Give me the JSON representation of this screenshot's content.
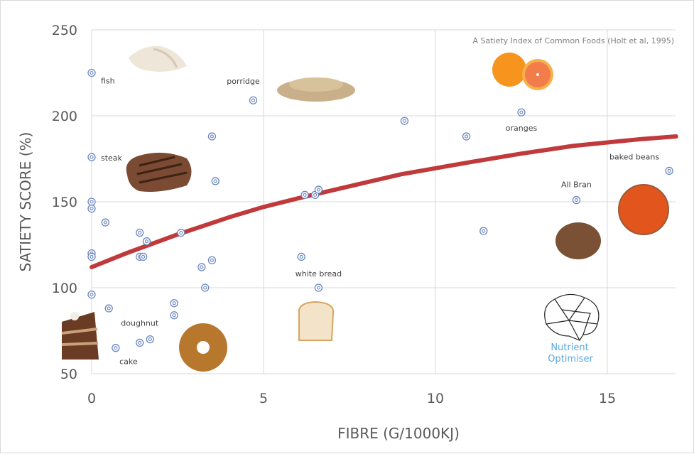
{
  "chart_data": {
    "type": "scatter",
    "title": "A Satiety Index of Common Foods (Holt et al, 1995)",
    "xlabel": "FIBRE (G/1000KJ)",
    "ylabel": "SATIETY SCORE (%)",
    "xlim": [
      0,
      17
    ],
    "ylim": [
      50,
      250
    ],
    "xticks": [
      "0",
      "5",
      "10",
      "15"
    ],
    "yticks": [
      "50",
      "100",
      "150",
      "200",
      "250"
    ],
    "grid": true,
    "marker_color": "#4a6bb5",
    "trend_color": "#c0393b",
    "points": [
      {
        "x": 0,
        "y": 225,
        "label": "fish"
      },
      {
        "x": 4.7,
        "y": 209,
        "label": "porridge"
      },
      {
        "x": 0,
        "y": 176,
        "label": "steak"
      },
      {
        "x": 3.5,
        "y": 188
      },
      {
        "x": 3.6,
        "y": 162
      },
      {
        "x": 0,
        "y": 150
      },
      {
        "x": 0,
        "y": 146
      },
      {
        "x": 0.4,
        "y": 138
      },
      {
        "x": 1.4,
        "y": 132
      },
      {
        "x": 1.6,
        "y": 127
      },
      {
        "x": 2.6,
        "y": 132
      },
      {
        "x": 0,
        "y": 120
      },
      {
        "x": 0,
        "y": 118
      },
      {
        "x": 1.4,
        "y": 118
      },
      {
        "x": 1.5,
        "y": 118
      },
      {
        "x": 3.5,
        "y": 116
      },
      {
        "x": 3.2,
        "y": 112
      },
      {
        "x": 3.3,
        "y": 100
      },
      {
        "x": 0,
        "y": 96
      },
      {
        "x": 0.5,
        "y": 88
      },
      {
        "x": 2.4,
        "y": 91
      },
      {
        "x": 2.4,
        "y": 84
      },
      {
        "x": 1.7,
        "y": 70
      },
      {
        "x": 1.4,
        "y": 68,
        "label": "doughnut"
      },
      {
        "x": 0.7,
        "y": 65,
        "label": "cake"
      },
      {
        "x": 6.1,
        "y": 118
      },
      {
        "x": 6.6,
        "y": 100,
        "label": "white bread"
      },
      {
        "x": 6.2,
        "y": 154
      },
      {
        "x": 6.5,
        "y": 154
      },
      {
        "x": 6.6,
        "y": 157
      },
      {
        "x": 9.1,
        "y": 197
      },
      {
        "x": 10.9,
        "y": 188
      },
      {
        "x": 12.5,
        "y": 202,
        "label": "oranges"
      },
      {
        "x": 11.4,
        "y": 133
      },
      {
        "x": 14.1,
        "y": 151,
        "label": "All Bran"
      },
      {
        "x": 16.8,
        "y": 168,
        "label": "baked beans"
      }
    ],
    "trendline": {
      "type": "polynomial",
      "x": [
        0,
        1,
        2.5,
        4,
        5,
        6,
        7.5,
        9,
        10,
        11,
        12.5,
        14,
        15,
        16,
        17
      ],
      "y": [
        112,
        120,
        131,
        141,
        147,
        152,
        159,
        166,
        169.5,
        173,
        178,
        182.5,
        184.5,
        186.5,
        188
      ]
    }
  },
  "logo": {
    "line1": "Nutrient",
    "line2": "Optimiser"
  }
}
